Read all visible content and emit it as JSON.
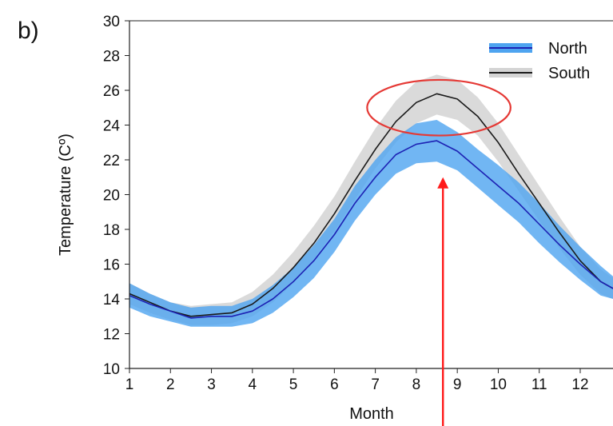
{
  "panel_label": "b)",
  "chart_data": {
    "type": "line",
    "xlabel": "Month",
    "ylabel": "Temperature (Cº)",
    "xlim": [
      1,
      12.8
    ],
    "ylim": [
      10,
      30
    ],
    "xticks": [
      1,
      2,
      3,
      4,
      5,
      6,
      7,
      8,
      9,
      10,
      11,
      12
    ],
    "yticks": [
      10,
      12,
      14,
      16,
      18,
      20,
      22,
      24,
      26,
      28,
      30
    ],
    "legend_position": "top-right",
    "series": [
      {
        "name": "North",
        "line_color": "#1d22b4",
        "band_color": "#4ea4f0",
        "x": [
          1,
          1.5,
          2,
          2.5,
          3,
          3.5,
          4,
          4.5,
          5,
          5.5,
          6,
          6.5,
          7,
          7.5,
          8,
          8.5,
          9,
          9.5,
          10,
          10.5,
          11,
          11.5,
          12,
          12.5,
          12.8
        ],
        "values": [
          14.2,
          13.7,
          13.3,
          12.9,
          13.0,
          13.0,
          13.3,
          14.0,
          15.0,
          16.2,
          17.7,
          19.5,
          21.0,
          22.3,
          22.9,
          23.1,
          22.5,
          21.5,
          20.5,
          19.5,
          18.3,
          17.1,
          16.0,
          15.0,
          14.6
        ],
        "upper": [
          14.9,
          14.3,
          13.8,
          13.5,
          13.6,
          13.6,
          14.0,
          14.8,
          15.8,
          17.1,
          18.6,
          20.5,
          22.0,
          23.3,
          24.1,
          24.3,
          23.6,
          22.6,
          21.7,
          20.7,
          19.5,
          18.2,
          17.0,
          15.9,
          15.3
        ],
        "lower": [
          13.5,
          13.0,
          12.7,
          12.4,
          12.4,
          12.4,
          12.6,
          13.2,
          14.1,
          15.2,
          16.7,
          18.5,
          20.0,
          21.2,
          21.8,
          21.9,
          21.4,
          20.4,
          19.4,
          18.4,
          17.2,
          16.1,
          15.1,
          14.2,
          14.0
        ]
      },
      {
        "name": "South",
        "line_color": "#1a1a1a",
        "band_color": "#d4d4d4",
        "x": [
          1,
          1.5,
          2,
          2.5,
          3,
          3.5,
          4,
          4.5,
          5,
          5.5,
          6,
          6.5,
          7,
          7.5,
          8,
          8.5,
          9,
          9.5,
          10,
          10.5,
          11,
          11.5,
          12,
          12.5,
          12.8
        ],
        "values": [
          14.3,
          13.8,
          13.3,
          13.0,
          13.1,
          13.2,
          13.7,
          14.6,
          15.8,
          17.2,
          18.9,
          20.8,
          22.6,
          24.2,
          25.3,
          25.8,
          25.5,
          24.5,
          23.0,
          21.2,
          19.5,
          17.8,
          16.2,
          15.0,
          14.6
        ],
        "upper": [
          14.9,
          14.3,
          13.8,
          13.6,
          13.7,
          13.8,
          14.4,
          15.4,
          16.7,
          18.2,
          19.9,
          21.9,
          23.8,
          25.4,
          26.5,
          26.9,
          26.6,
          25.6,
          24.1,
          22.3,
          20.5,
          18.7,
          17.0,
          15.7,
          15.2
        ],
        "lower": [
          13.7,
          13.2,
          12.8,
          12.5,
          12.5,
          12.6,
          13.0,
          13.8,
          14.9,
          16.3,
          17.9,
          19.7,
          21.5,
          23.0,
          24.1,
          24.6,
          24.3,
          23.4,
          21.9,
          20.2,
          18.5,
          16.9,
          15.4,
          14.3,
          14.0
        ]
      }
    ],
    "annotations": [
      {
        "type": "ellipse",
        "color": "#e53935",
        "cx": 8.55,
        "cy": 25.0,
        "rx_months": 1.75,
        "ry_degC": 1.6
      },
      {
        "type": "arrow",
        "color": "#ff1a1a",
        "x": 8.65,
        "y_from": 5.5,
        "y_to": 21.0
      }
    ]
  }
}
